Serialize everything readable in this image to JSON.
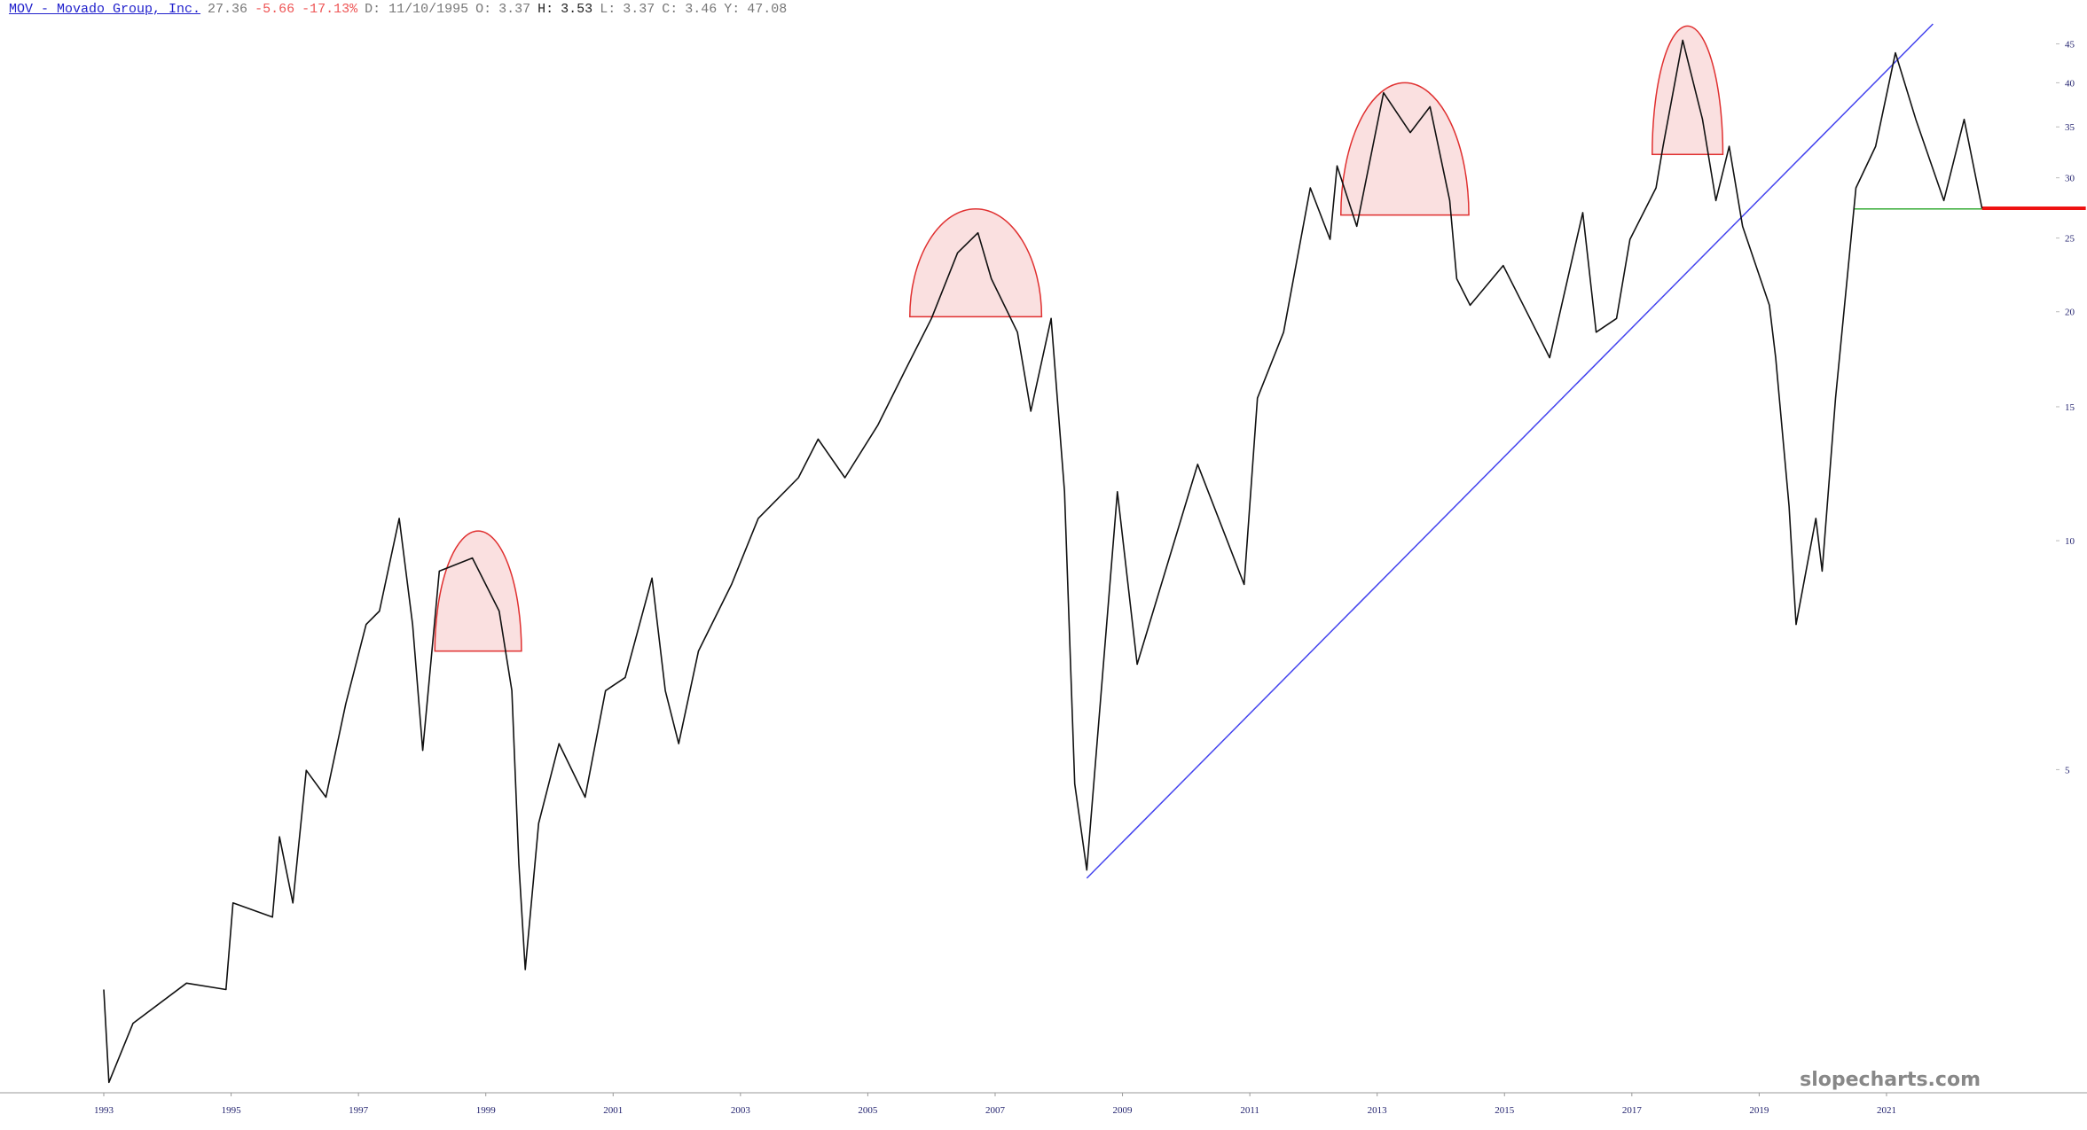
{
  "chart_data": {
    "type": "line",
    "header": [
      {
        "text": "MOV - Movado Group, Inc.",
        "color": "#2222cc",
        "link": true
      },
      {
        "text": "27.36",
        "color": "#777777"
      },
      {
        "text": "-5.66",
        "color": "#ee5555"
      },
      {
        "text": "-17.13%",
        "color": "#ee5555"
      },
      {
        "text": "D: 11/10/1995",
        "color": "#777777"
      },
      {
        "text": "O:",
        "color": "#777777"
      },
      {
        "text": "3.37",
        "color": "#777777"
      },
      {
        "text": "H:",
        "color": "#222222"
      },
      {
        "text": "3.53",
        "color": "#222222"
      },
      {
        "text": "L:",
        "color": "#777777"
      },
      {
        "text": "3.37",
        "color": "#777777"
      },
      {
        "text": "C:",
        "color": "#777777"
      },
      {
        "text": "3.46",
        "color": "#777777"
      },
      {
        "text": "Y:",
        "color": "#777777"
      },
      {
        "text": "47.08",
        "color": "#777777"
      }
    ],
    "watermark": "slopecharts.com",
    "log_scale": true,
    "xlim": [
      1991.37,
      2023.55
    ],
    "xticks": [
      1993,
      1995,
      1997,
      1999,
      2001,
      2003,
      2005,
      2007,
      2009,
      2011,
      2013,
      2015,
      2017,
      2019,
      2021
    ],
    "ylim": [
      1.88,
      47.8
    ],
    "yticks": [
      5,
      10,
      15,
      20,
      25,
      30,
      35,
      40,
      45
    ],
    "x": [
      1993.0,
      1993.08,
      1993.46,
      1994.3,
      1994.92,
      1995.03,
      1995.65,
      1995.76,
      1995.97,
      1996.18,
      1996.49,
      1996.8,
      1997.12,
      1997.33,
      1997.64,
      1997.85,
      1998.01,
      1998.27,
      1998.79,
      1999.21,
      1999.41,
      1999.52,
      1999.62,
      1999.83,
      2000.15,
      2000.56,
      2000.88,
      2001.19,
      2001.61,
      2001.82,
      2002.03,
      2002.34,
      2002.86,
      2003.28,
      2003.91,
      2004.22,
      2004.64,
      2005.16,
      2005.58,
      2006.0,
      2006.41,
      2006.73,
      2006.94,
      2007.35,
      2007.56,
      2007.88,
      2008.09,
      2008.25,
      2008.44,
      2008.92,
      2009.23,
      2010.18,
      2010.91,
      2011.12,
      2011.53,
      2011.95,
      2012.26,
      2012.37,
      2012.68,
      2013.1,
      2013.52,
      2013.83,
      2014.14,
      2014.25,
      2014.46,
      2014.98,
      2015.4,
      2015.71,
      2016.23,
      2016.44,
      2016.76,
      2016.97,
      2017.38,
      2017.49,
      2017.8,
      2018.11,
      2018.32,
      2018.53,
      2018.74,
      2019.16,
      2019.26,
      2019.47,
      2019.58,
      2019.89,
      2019.99,
      2020.2,
      2020.52,
      2020.83,
      2021.14,
      2021.46,
      2021.9,
      2022.22,
      2022.5
    ],
    "series": [
      {
        "color": "#111111",
        "values": [
          2.57,
          1.94,
          2.32,
          2.62,
          2.57,
          3.34,
          3.2,
          4.08,
          3.34,
          4.99,
          4.6,
          6.1,
          7.76,
          8.08,
          10.7,
          7.76,
          5.3,
          9.12,
          9.49,
          8.08,
          6.35,
          3.76,
          2.73,
          4.25,
          5.41,
          4.6,
          6.35,
          6.61,
          8.93,
          6.35,
          5.41,
          7.16,
          8.76,
          10.7,
          12.1,
          13.6,
          12.1,
          14.2,
          16.7,
          19.6,
          23.9,
          25.4,
          22.1,
          18.8,
          14.8,
          19.6,
          11.6,
          4.79,
          3.69,
          11.6,
          6.88,
          12.6,
          8.76,
          15.4,
          18.8,
          29.1,
          24.9,
          31.1,
          25.9,
          38.8,
          34.4,
          37.2,
          28.0,
          22.1,
          20.4,
          23.0,
          19.6,
          17.4,
          27.0,
          18.8,
          19.6,
          24.9,
          29.1,
          33.0,
          45.5,
          35.8,
          28.0,
          33.0,
          25.9,
          20.4,
          17.4,
          11.1,
          7.76,
          10.7,
          9.12,
          15.4,
          29.1,
          33.0,
          43.8,
          35.8,
          28.0,
          35.8,
          27.36
        ]
      }
    ],
    "drawings": [
      {
        "kind": "dome",
        "color": "#e03030",
        "x": [
          1998.2,
          1999.56
        ],
        "y": [
          7.16,
          10.3
        ]
      },
      {
        "kind": "dome",
        "color": "#e03030",
        "x": [
          2005.66,
          2007.73
        ],
        "y": [
          19.7,
          27.3
        ]
      },
      {
        "kind": "dome",
        "color": "#e03030",
        "x": [
          2012.43,
          2014.44
        ],
        "y": [
          26.8,
          40.0
        ]
      },
      {
        "kind": "dome",
        "color": "#e03030",
        "x": [
          2017.32,
          2018.43
        ],
        "y": [
          32.2,
          47.5
        ]
      },
      {
        "kind": "line",
        "color": "#4444ee",
        "width": 1.5,
        "x": [
          2008.44,
          2021.73
        ],
        "y": [
          3.6,
          47.8
        ]
      },
      {
        "kind": "line",
        "color": "#33aa33",
        "width": 1.5,
        "x": [
          2020.48,
          2022.5
        ],
        "y": [
          27.3,
          27.3
        ]
      },
      {
        "kind": "line",
        "color": "#ee1111",
        "width": 4,
        "x": [
          2022.5,
          2024.13
        ],
        "y": [
          27.36,
          27.36
        ]
      }
    ]
  }
}
